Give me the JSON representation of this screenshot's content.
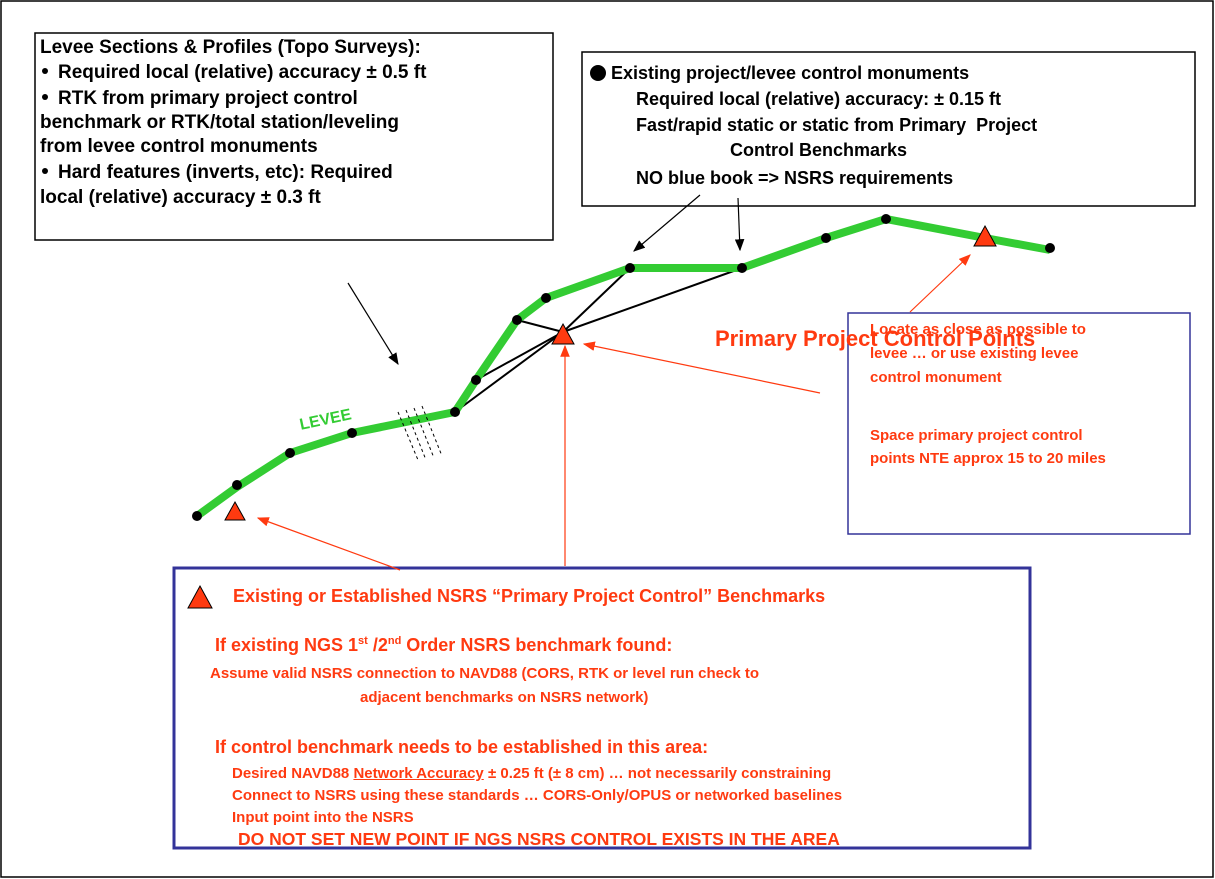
{
  "levee_box": {
    "title": "Levee Sections & Profiles (Topo Surveys):",
    "bullets": [
      [
        "Required local (relative) accuracy ± 0.5 ft"
      ],
      [
        "RTK from primary project control",
        "benchmark or RTK/total station/leveling",
        "from levee control monuments"
      ],
      [
        "Hard features (inverts, etc): Required",
        "local (relative) accuracy ± 0.3 ft"
      ]
    ]
  },
  "monuments_box": {
    "title": "Existing project/levee control monuments",
    "lines": [
      "Required local (relative) accuracy: ± 0.15 ft",
      "Fast/rapid static or static from Primary  Project",
      "Control Benchmarks",
      "NO blue book => NSRS requirements"
    ]
  },
  "primary_label": "Primary Project Control Points",
  "levee_label": "LEVEE",
  "locate_box": {
    "paragraphs": [
      [
        "Locate as close as possible to",
        "levee … or use existing levee",
        "control monument"
      ],
      [
        "Space primary project control",
        "points NTE approx 15 to 20 miles"
      ]
    ]
  },
  "nsrs_box": {
    "title": "Existing or Established NSRS “Primary Project Control” Benchmarks",
    "existing": {
      "heading": [
        "If existing NGS 1",
        "st",
        " /2",
        "nd",
        " Order NSRS benchmark found:"
      ],
      "lines": [
        "Assume valid NSRS connection to NAVD88 (CORS, RTK or level run check to",
        "adjacent benchmarks on NSRS network)"
      ]
    },
    "establish": {
      "heading": "If control benchmark needs to be established in this area:",
      "lines": [
        [
          "Desired NAVD88 ",
          "Network Accuracy",
          " ± 0.25 ft (± 8 cm) … not necessarily constraining"
        ],
        [
          "Connect to NSRS using these standards … CORS-Only/OPUS or networked baselines"
        ],
        [
          "Input point into the NSRS"
        ]
      ]
    },
    "warning": "DO NOT SET NEW POINT IF NGS NSRS CONTROL EXISTS IN THE AREA"
  }
}
